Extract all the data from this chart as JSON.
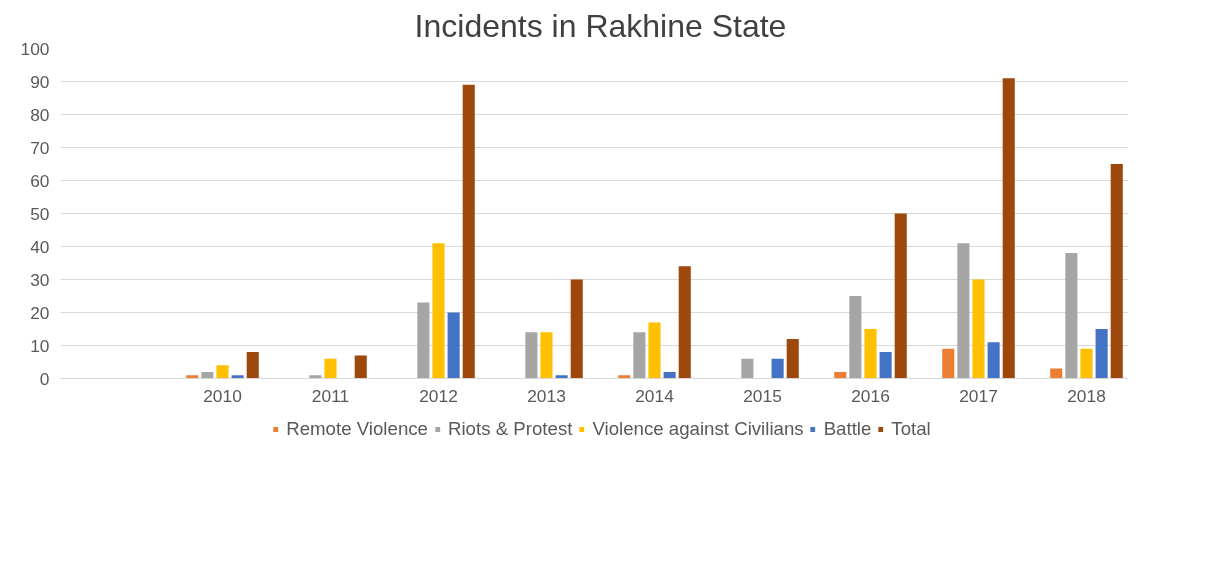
{
  "chart_data": {
    "type": "bar",
    "title": "Incidents in Rakhine State",
    "categories": [
      null,
      "2010",
      "2011",
      "2012",
      "2013",
      "2014",
      "2015",
      "2016",
      "2017",
      "2018"
    ],
    "series": [
      {
        "name": "Remote Violence",
        "color": "#ed7d31",
        "values": [
          null,
          1,
          0,
          0,
          0,
          1,
          0,
          2,
          9,
          3
        ]
      },
      {
        "name": "Riots & Protest",
        "color": "#a5a5a5",
        "values": [
          null,
          2,
          1,
          23,
          14,
          14,
          6,
          25,
          41,
          38
        ]
      },
      {
        "name": "Violence against Civilians",
        "color": "#ffc000",
        "values": [
          null,
          4,
          6,
          41,
          14,
          17,
          0,
          15,
          30,
          9
        ]
      },
      {
        "name": "Battle",
        "color": "#4472c4",
        "values": [
          null,
          1,
          0,
          20,
          1,
          2,
          6,
          8,
          11,
          15
        ]
      },
      {
        "name": "Total",
        "color": "#9e480e",
        "values": [
          null,
          8,
          7,
          89,
          30,
          34,
          12,
          50,
          91,
          65
        ]
      }
    ],
    "ylim": [
      0,
      100
    ],
    "yticks": [
      0,
      10,
      20,
      30,
      40,
      50,
      60,
      70,
      80,
      90,
      100
    ],
    "grid": "y",
    "legend": "bottom"
  }
}
